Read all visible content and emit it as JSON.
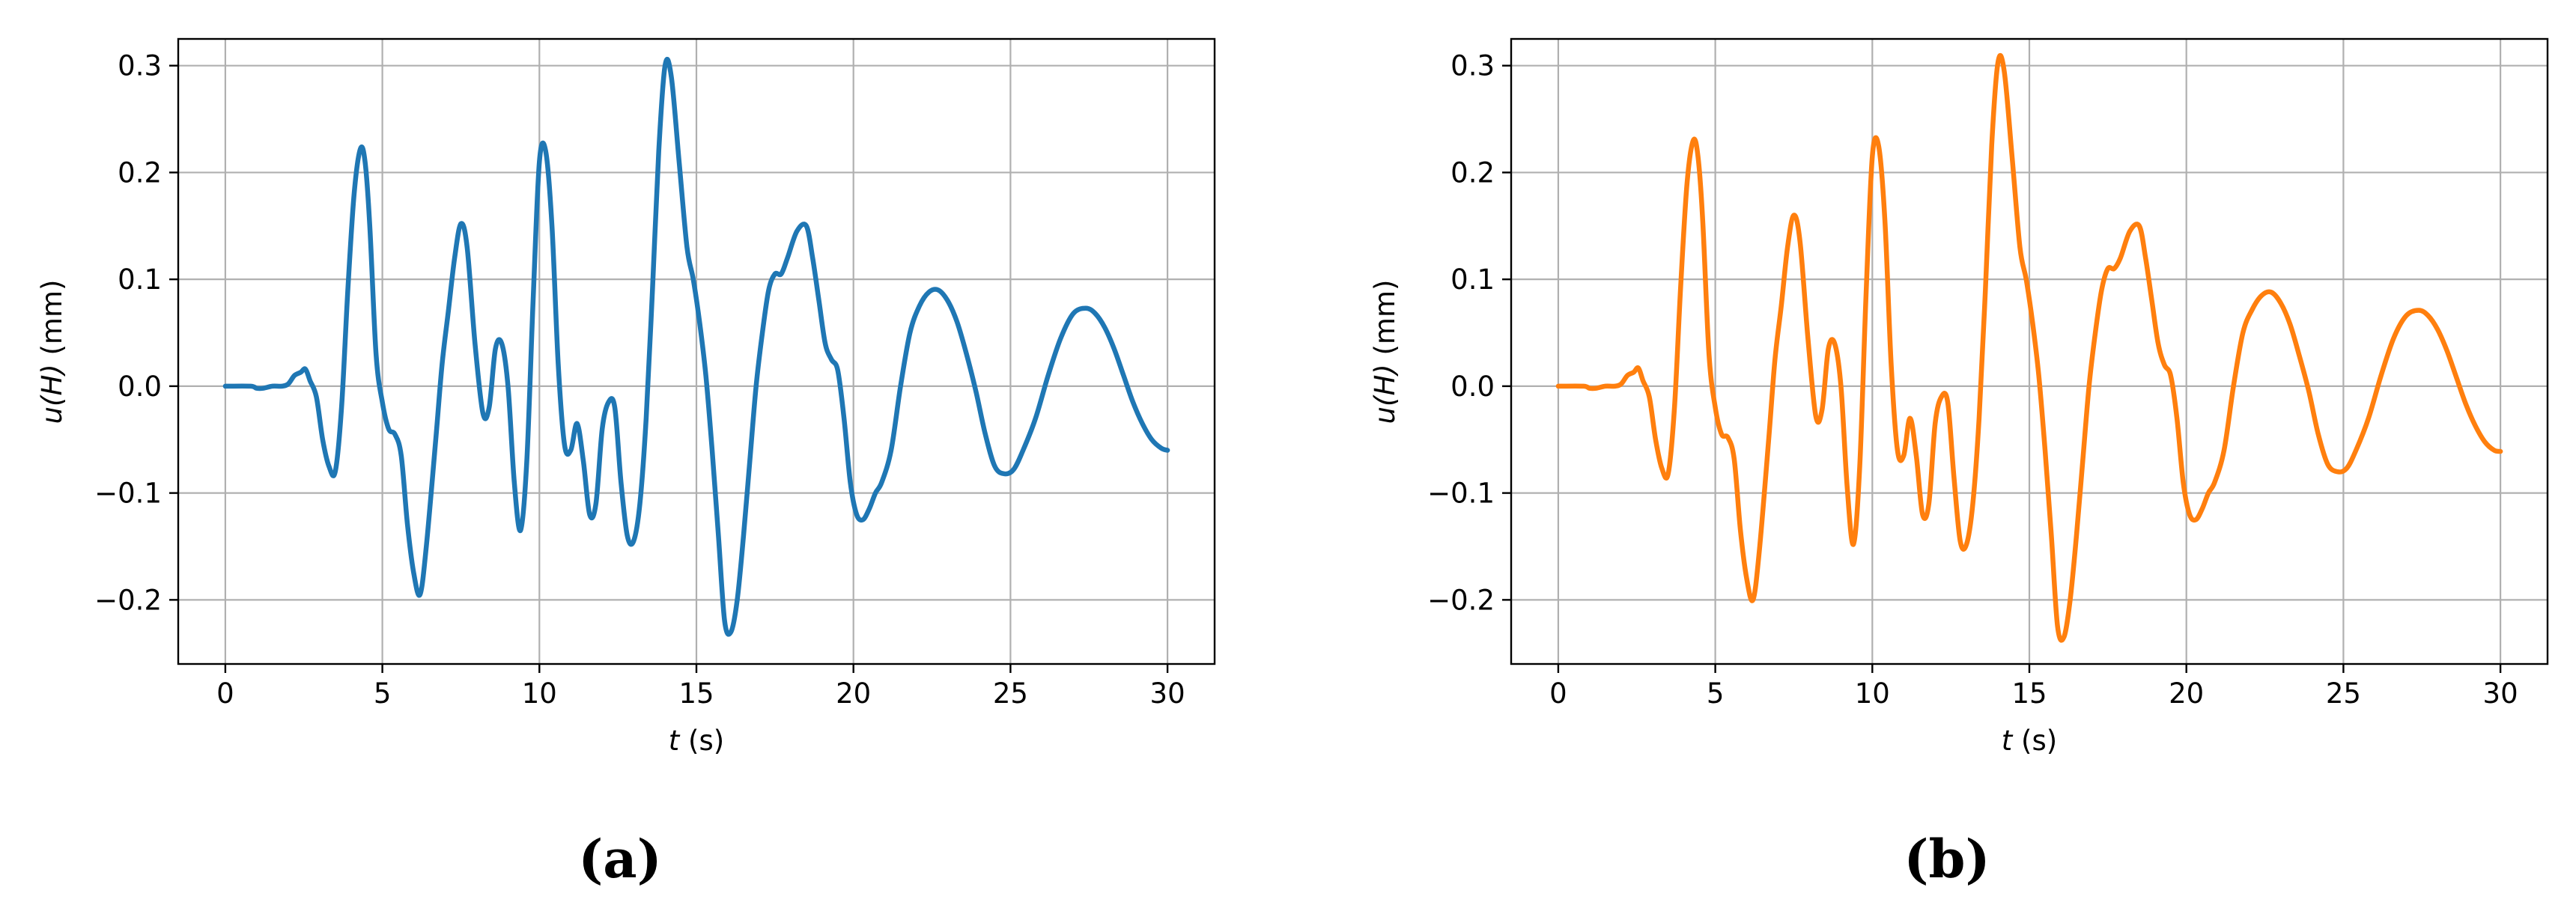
{
  "chart_data": [
    {
      "type": "line",
      "panel_caption": "(a)",
      "xlabel_var": "t",
      "xlabel_unit": " (s)",
      "ylabel_var": "u(H)",
      "ylabel_unit": " (mm)",
      "xlim": [
        -1.5,
        31.5
      ],
      "ylim": [
        -0.26,
        0.325
      ],
      "xticks": [
        0,
        5,
        10,
        15,
        20,
        25,
        30
      ],
      "yticks": [
        -0.2,
        -0.1,
        0.0,
        0.1,
        0.2,
        0.3
      ],
      "ytick_labels": [
        "−0.2",
        "−0.1",
        "0.0",
        "0.1",
        "0.2",
        "0.3"
      ],
      "grid": true,
      "color": "#1f77b4",
      "series": [
        {
          "x": [
            0,
            0.8,
            1.0,
            1.2,
            1.5,
            1.8,
            2.0,
            2.2,
            2.4,
            2.55,
            2.7,
            2.9,
            3.1,
            3.3,
            3.5,
            3.7,
            3.9,
            4.1,
            4.3,
            4.45,
            4.6,
            4.8,
            5.0,
            5.2,
            5.4,
            5.6,
            5.8,
            6.0,
            6.2,
            6.4,
            6.7,
            6.9,
            7.1,
            7.3,
            7.5,
            7.7,
            7.95,
            8.2,
            8.4,
            8.6,
            8.8,
            9.0,
            9.2,
            9.4,
            9.6,
            9.8,
            10.0,
            10.2,
            10.4,
            10.6,
            10.8,
            11.0,
            11.2,
            11.4,
            11.6,
            11.8,
            12.0,
            12.2,
            12.4,
            12.6,
            12.8,
            13.0,
            13.2,
            13.4,
            13.6,
            13.8,
            14.0,
            14.2,
            14.45,
            14.7,
            14.9,
            15.1,
            15.3,
            15.5,
            15.7,
            15.9,
            16.1,
            16.3,
            16.5,
            16.7,
            16.9,
            17.1,
            17.3,
            17.5,
            17.7,
            17.9,
            18.2,
            18.5,
            18.7,
            18.9,
            19.1,
            19.3,
            19.5,
            19.7,
            19.9,
            20.1,
            20.3,
            20.5,
            20.7,
            20.9,
            21.2,
            21.5,
            21.8,
            22.1,
            22.4,
            22.7,
            23.0,
            23.3,
            23.6,
            23.9,
            24.2,
            24.5,
            24.8,
            25.1,
            25.4,
            25.8,
            26.2,
            26.6,
            27.0,
            27.4,
            27.7,
            28.0,
            28.3,
            28.6,
            28.9,
            29.2,
            29.5,
            29.8,
            30.0
          ],
          "y": [
            0.0,
            0.0,
            -0.002,
            -0.002,
            0.0,
            0.0,
            0.002,
            0.01,
            0.013,
            0.016,
            0.005,
            -0.01,
            -0.05,
            -0.075,
            -0.08,
            -0.02,
            0.09,
            0.18,
            0.222,
            0.21,
            0.15,
            0.03,
            -0.015,
            -0.04,
            -0.045,
            -0.065,
            -0.13,
            -0.175,
            -0.195,
            -0.15,
            -0.05,
            0.02,
            0.07,
            0.12,
            0.152,
            0.13,
            0.04,
            -0.025,
            -0.02,
            0.035,
            0.04,
            0.0,
            -0.09,
            -0.135,
            -0.07,
            0.08,
            0.21,
            0.22,
            0.15,
            0.02,
            -0.055,
            -0.06,
            -0.035,
            -0.07,
            -0.12,
            -0.11,
            -0.04,
            -0.015,
            -0.02,
            -0.09,
            -0.14,
            -0.145,
            -0.11,
            -0.03,
            0.09,
            0.22,
            0.3,
            0.29,
            0.21,
            0.13,
            0.1,
            0.06,
            0.01,
            -0.06,
            -0.14,
            -0.22,
            -0.23,
            -0.2,
            -0.14,
            -0.07,
            0.0,
            0.05,
            0.09,
            0.105,
            0.105,
            0.12,
            0.145,
            0.15,
            0.12,
            0.08,
            0.04,
            0.025,
            0.015,
            -0.03,
            -0.09,
            -0.12,
            -0.125,
            -0.115,
            -0.1,
            -0.09,
            -0.06,
            0.0,
            0.05,
            0.075,
            0.088,
            0.09,
            0.08,
            0.06,
            0.03,
            -0.005,
            -0.045,
            -0.075,
            -0.082,
            -0.078,
            -0.06,
            -0.03,
            0.01,
            0.045,
            0.068,
            0.073,
            0.068,
            0.055,
            0.035,
            0.01,
            -0.015,
            -0.035,
            -0.05,
            -0.058,
            -0.06
          ]
        }
      ]
    },
    {
      "type": "line",
      "panel_caption": "(b)",
      "xlabel_var": "t",
      "xlabel_unit": " (s)",
      "ylabel_var": "u(H)",
      "ylabel_unit": " (mm)",
      "xlim": [
        -1.5,
        31.5
      ],
      "ylim": [
        -0.26,
        0.325
      ],
      "xticks": [
        0,
        5,
        10,
        15,
        20,
        25,
        30
      ],
      "yticks": [
        -0.2,
        -0.1,
        0.0,
        0.1,
        0.2,
        0.3
      ],
      "ytick_labels": [
        "−0.2",
        "−0.1",
        "0.0",
        "0.1",
        "0.2",
        "0.3"
      ],
      "grid": true,
      "color": "#ff7f0e",
      "series": [
        {
          "x": [
            0,
            0.8,
            1.0,
            1.2,
            1.5,
            1.8,
            2.0,
            2.2,
            2.4,
            2.55,
            2.7,
            2.9,
            3.1,
            3.3,
            3.5,
            3.7,
            3.9,
            4.1,
            4.3,
            4.45,
            4.6,
            4.8,
            5.0,
            5.2,
            5.4,
            5.6,
            5.8,
            6.0,
            6.2,
            6.4,
            6.7,
            6.9,
            7.1,
            7.3,
            7.5,
            7.7,
            7.95,
            8.2,
            8.4,
            8.6,
            8.8,
            9.0,
            9.2,
            9.4,
            9.6,
            9.8,
            10.0,
            10.2,
            10.4,
            10.6,
            10.8,
            11.0,
            11.2,
            11.4,
            11.6,
            11.8,
            12.0,
            12.2,
            12.4,
            12.6,
            12.8,
            13.0,
            13.2,
            13.4,
            13.6,
            13.8,
            14.0,
            14.2,
            14.45,
            14.7,
            14.9,
            15.1,
            15.3,
            15.5,
            15.7,
            15.9,
            16.1,
            16.3,
            16.5,
            16.7,
            16.9,
            17.1,
            17.3,
            17.5,
            17.7,
            17.9,
            18.2,
            18.5,
            18.7,
            18.9,
            19.1,
            19.3,
            19.5,
            19.7,
            19.9,
            20.1,
            20.3,
            20.5,
            20.7,
            20.9,
            21.2,
            21.5,
            21.8,
            22.1,
            22.4,
            22.7,
            23.0,
            23.3,
            23.6,
            23.9,
            24.2,
            24.5,
            24.8,
            25.1,
            25.4,
            25.8,
            26.2,
            26.6,
            27.0,
            27.4,
            27.7,
            28.0,
            28.3,
            28.6,
            28.9,
            29.2,
            29.5,
            29.8,
            30.0
          ],
          "y": [
            0.0,
            0.0,
            -0.002,
            -0.002,
            0.0,
            0.0,
            0.002,
            0.01,
            0.013,
            0.017,
            0.005,
            -0.01,
            -0.05,
            -0.077,
            -0.082,
            -0.02,
            0.095,
            0.19,
            0.23,
            0.215,
            0.155,
            0.03,
            -0.02,
            -0.045,
            -0.048,
            -0.068,
            -0.135,
            -0.18,
            -0.2,
            -0.155,
            -0.05,
            0.025,
            0.075,
            0.13,
            0.16,
            0.135,
            0.045,
            -0.028,
            -0.022,
            0.035,
            0.04,
            0.0,
            -0.095,
            -0.148,
            -0.075,
            0.085,
            0.215,
            0.225,
            0.155,
            0.02,
            -0.06,
            -0.065,
            -0.03,
            -0.065,
            -0.12,
            -0.11,
            -0.035,
            -0.01,
            -0.015,
            -0.085,
            -0.145,
            -0.148,
            -0.11,
            -0.03,
            0.09,
            0.225,
            0.303,
            0.295,
            0.215,
            0.13,
            0.1,
            0.06,
            0.01,
            -0.06,
            -0.14,
            -0.225,
            -0.235,
            -0.2,
            -0.14,
            -0.07,
            0.0,
            0.05,
            0.09,
            0.11,
            0.11,
            0.12,
            0.145,
            0.15,
            0.12,
            0.08,
            0.04,
            0.02,
            0.01,
            -0.03,
            -0.09,
            -0.12,
            -0.125,
            -0.115,
            -0.1,
            -0.09,
            -0.06,
            0.0,
            0.05,
            0.072,
            0.085,
            0.088,
            0.078,
            0.058,
            0.028,
            -0.005,
            -0.045,
            -0.073,
            -0.08,
            -0.077,
            -0.06,
            -0.03,
            0.01,
            0.045,
            0.066,
            0.071,
            0.066,
            0.053,
            0.033,
            0.008,
            -0.017,
            -0.037,
            -0.052,
            -0.06,
            -0.061
          ]
        }
      ]
    }
  ]
}
